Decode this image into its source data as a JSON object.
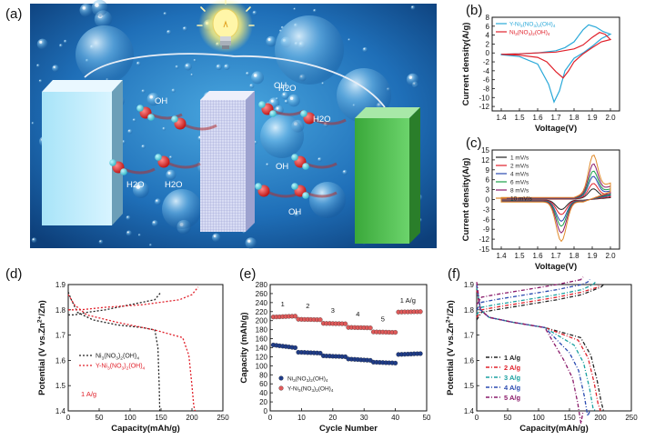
{
  "figure": {
    "panel_a": {
      "label": "(a)",
      "annotations": [
        "OH",
        "H2O",
        "OH",
        "H2O",
        "H2O",
        "OH",
        "H2O",
        "OH"
      ]
    },
    "colors": {
      "black": "#222222",
      "red": "#e0202a",
      "cyan": "#2aa9d9",
      "green": "#1aa04a",
      "blue": "#2a4ab0",
      "purple": "#8a1a6a",
      "orange": "#e08a2a",
      "brown": "#b0602a"
    }
  },
  "chart_data": [
    {
      "id": "b",
      "label": "(b)",
      "type": "line",
      "xlabel": "Voltage(V)",
      "ylabel": "Current density(A/g)",
      "xlim": [
        1.35,
        2.05
      ],
      "ylim": [
        -13,
        8
      ],
      "xticks": [
        "1.4",
        "1.5",
        "1.6",
        "1.7",
        "1.8",
        "1.9",
        "2.0"
      ],
      "yticks": [
        "-12",
        "-10",
        "-8",
        "-6",
        "-4",
        "-2",
        "0",
        "2",
        "4",
        "6",
        "8"
      ],
      "legend": [
        "Y-Ni3(NO3)2(OH)4",
        "Ni3(NO3)2(OH)4"
      ],
      "series": [
        {
          "name": "Y-Ni3(NO3)2(OH)4",
          "color": "#2aa9d9",
          "x": [
            1.4,
            1.5,
            1.6,
            1.7,
            1.75,
            1.8,
            1.85,
            1.88,
            1.92,
            1.96,
            2.0,
            1.95,
            1.9,
            1.85,
            1.8,
            1.75,
            1.72,
            1.69,
            1.66,
            1.6,
            1.5,
            1.4
          ],
          "y": [
            -0.3,
            -0.2,
            0,
            0.5,
            1.2,
            2.5,
            5.2,
            6.3,
            5.8,
            4.8,
            4.2,
            3.2,
            1.5,
            0,
            -1.2,
            -4,
            -8.5,
            -11,
            -7,
            -2.5,
            -0.8,
            -0.4
          ]
        },
        {
          "name": "Ni3(NO3)2(OH)4",
          "color": "#e0202a",
          "x": [
            1.4,
            1.5,
            1.6,
            1.7,
            1.8,
            1.85,
            1.9,
            1.94,
            1.97,
            2.0,
            1.95,
            1.9,
            1.85,
            1.8,
            1.77,
            1.74,
            1.7,
            1.65,
            1.6,
            1.5,
            1.4
          ],
          "y": [
            -0.3,
            -0.2,
            0,
            0.2,
            0.9,
            1.8,
            3.5,
            4.6,
            4.2,
            3.0,
            2.5,
            1.2,
            -0.2,
            -2,
            -4,
            -5.6,
            -4.2,
            -2,
            -1,
            -0.5,
            -0.3
          ]
        }
      ]
    },
    {
      "id": "c",
      "label": "(c)",
      "type": "line",
      "xlabel": "Voltage(V)",
      "ylabel": "Current density(A/g)",
      "xlim": [
        1.35,
        2.05
      ],
      "ylim": [
        -15,
        15
      ],
      "xticks": [
        "1.4",
        "1.5",
        "1.6",
        "1.7",
        "1.8",
        "1.9",
        "2.0"
      ],
      "yticks": [
        "-15",
        "-12",
        "-9",
        "-6",
        "-3",
        "0",
        "3",
        "6",
        "9",
        "12",
        "15"
      ],
      "legend": [
        "1 mV/s",
        "2 mV/s",
        "4 mV/s",
        "6 mV/s",
        "8 mV/s",
        "10 mV/s"
      ],
      "series": [
        {
          "name": "1 mV/s",
          "amplitude": 3,
          "color": "#222222"
        },
        {
          "name": "2 mV/s",
          "amplitude": 4.5,
          "color": "#e0202a"
        },
        {
          "name": "4 mV/s",
          "amplitude": 6.5,
          "color": "#2a4ab0"
        },
        {
          "name": "6 mV/s",
          "amplitude": 8,
          "color": "#1aa04a"
        },
        {
          "name": "8 mV/s",
          "amplitude": 10,
          "color": "#8a1a6a"
        },
        {
          "name": "10 mV/s",
          "amplitude": 12.5,
          "color": "#e08a2a"
        }
      ]
    },
    {
      "id": "d",
      "label": "(d)",
      "type": "line",
      "xlabel": "Capacity(mAh/g)",
      "ylabel": "Potential (V vs.Zn2+/Zn)",
      "xlim": [
        0,
        250
      ],
      "ylim": [
        1.4,
        1.9
      ],
      "xticks": [
        "0",
        "50",
        "100",
        "150",
        "200",
        "250"
      ],
      "yticks": [
        "1.4",
        "1.5",
        "1.6",
        "1.7",
        "1.8",
        "1.9"
      ],
      "annotation": "1 A/g",
      "legend": [
        "Ni3(NO3)2(OH)4",
        "Y-Ni3(NO3)2(OH)4"
      ],
      "series": [
        {
          "name": "Ni3(NO3)2(OH)4 charge",
          "color": "#222222",
          "x": [
            0,
            10,
            30,
            60,
            100,
            140,
            150
          ],
          "y": [
            1.78,
            1.78,
            1.79,
            1.8,
            1.82,
            1.84,
            1.87
          ]
        },
        {
          "name": "Ni3(NO3)2(OH)4 discharge",
          "color": "#222222",
          "x": [
            0,
            5,
            15,
            40,
            80,
            120,
            140,
            145,
            147,
            148
          ],
          "y": [
            1.87,
            1.84,
            1.79,
            1.76,
            1.74,
            1.73,
            1.72,
            1.65,
            1.5,
            1.4
          ]
        },
        {
          "name": "Y-Ni3(NO3)2(OH)4 charge",
          "color": "#e0202a",
          "x": [
            0,
            20,
            60,
            120,
            180,
            200,
            210
          ],
          "y": [
            1.8,
            1.8,
            1.81,
            1.82,
            1.84,
            1.86,
            1.89
          ]
        },
        {
          "name": "Y-Ni3(NO3)2(OH)4 discharge",
          "color": "#e0202a",
          "x": [
            0,
            10,
            30,
            80,
            140,
            185,
            195,
            200,
            203,
            205
          ],
          "y": [
            1.86,
            1.82,
            1.78,
            1.75,
            1.72,
            1.69,
            1.62,
            1.5,
            1.42,
            1.4
          ]
        }
      ]
    },
    {
      "id": "e",
      "label": "(e)",
      "type": "scatter",
      "xlabel": "Cycle Number",
      "ylabel": "Capacity (mAh/g)",
      "xlim": [
        0,
        50
      ],
      "ylim": [
        0,
        280
      ],
      "xticks": [
        "0",
        "10",
        "20",
        "30",
        "40",
        "50"
      ],
      "yticks": [
        "0",
        "20",
        "40",
        "60",
        "80",
        "100",
        "120",
        "140",
        "160",
        "180",
        "200",
        "220",
        "240",
        "260",
        "280"
      ],
      "rate_labels": [
        "1",
        "2",
        "3",
        "4",
        "5",
        "1 A/g"
      ],
      "legend": [
        "Ni3(NO3)2(OH)4",
        "Y-Ni3(NO3)2(OH)4"
      ],
      "series": [
        {
          "name": "Ni3(NO3)2(OH)4",
          "color": "#1f3c88",
          "blocks": [
            [
              1,
              8,
              146,
              140
            ],
            [
              9,
              16,
              130,
              128
            ],
            [
              17,
              24,
              122,
              120
            ],
            [
              25,
              32,
              115,
              112
            ],
            [
              33,
              40,
              108,
              106
            ],
            [
              41,
              48,
              125,
              127
            ]
          ]
        },
        {
          "name": "Y-Ni3(NO3)2(OH)4",
          "color": "#e05a5a",
          "blocks": [
            [
              1,
              8,
              208,
              210
            ],
            [
              9,
              16,
              203,
              202
            ],
            [
              17,
              24,
              194,
              193
            ],
            [
              25,
              32,
              185,
              184
            ],
            [
              33,
              40,
              175,
              174
            ],
            [
              41,
              48,
              219,
              220
            ]
          ]
        }
      ]
    },
    {
      "id": "f",
      "label": "(f)",
      "type": "line",
      "xlabel": "Capacity(mAh/g)",
      "ylabel": "Potential (V vs.Zn2+/Zn)",
      "xlim": [
        0,
        250
      ],
      "ylim": [
        1.4,
        1.9
      ],
      "xticks": [
        "0",
        "50",
        "100",
        "150",
        "200",
        "250"
      ],
      "yticks": [
        "1.4",
        "1.5",
        "1.6",
        "1.7",
        "1.8",
        "1.9"
      ],
      "legend": [
        "1 A/g",
        "2 A/g",
        "3 A/g",
        "4 A/g",
        "5 A/g"
      ],
      "series": [
        {
          "name": "1 A/g",
          "color": "#222222",
          "capacity": 205,
          "charge_start": 1.79,
          "charge_end": 1.9,
          "discharge_plateau": 1.69
        },
        {
          "name": "2 A/g",
          "color": "#e0202a",
          "capacity": 200,
          "charge_start": 1.8,
          "charge_end": 1.9,
          "discharge_plateau": 1.68
        },
        {
          "name": "3 A/g",
          "color": "#1aa0a0",
          "capacity": 192,
          "charge_start": 1.81,
          "charge_end": 1.91,
          "discharge_plateau": 1.66
        },
        {
          "name": "4 A/g",
          "color": "#2a4ab0",
          "capacity": 183,
          "charge_start": 1.83,
          "charge_end": 1.92,
          "discharge_plateau": 1.63
        },
        {
          "name": "5 A/g",
          "color": "#8a1a6a",
          "capacity": 172,
          "charge_start": 1.85,
          "charge_end": 1.93,
          "discharge_plateau": 1.6
        }
      ]
    }
  ]
}
